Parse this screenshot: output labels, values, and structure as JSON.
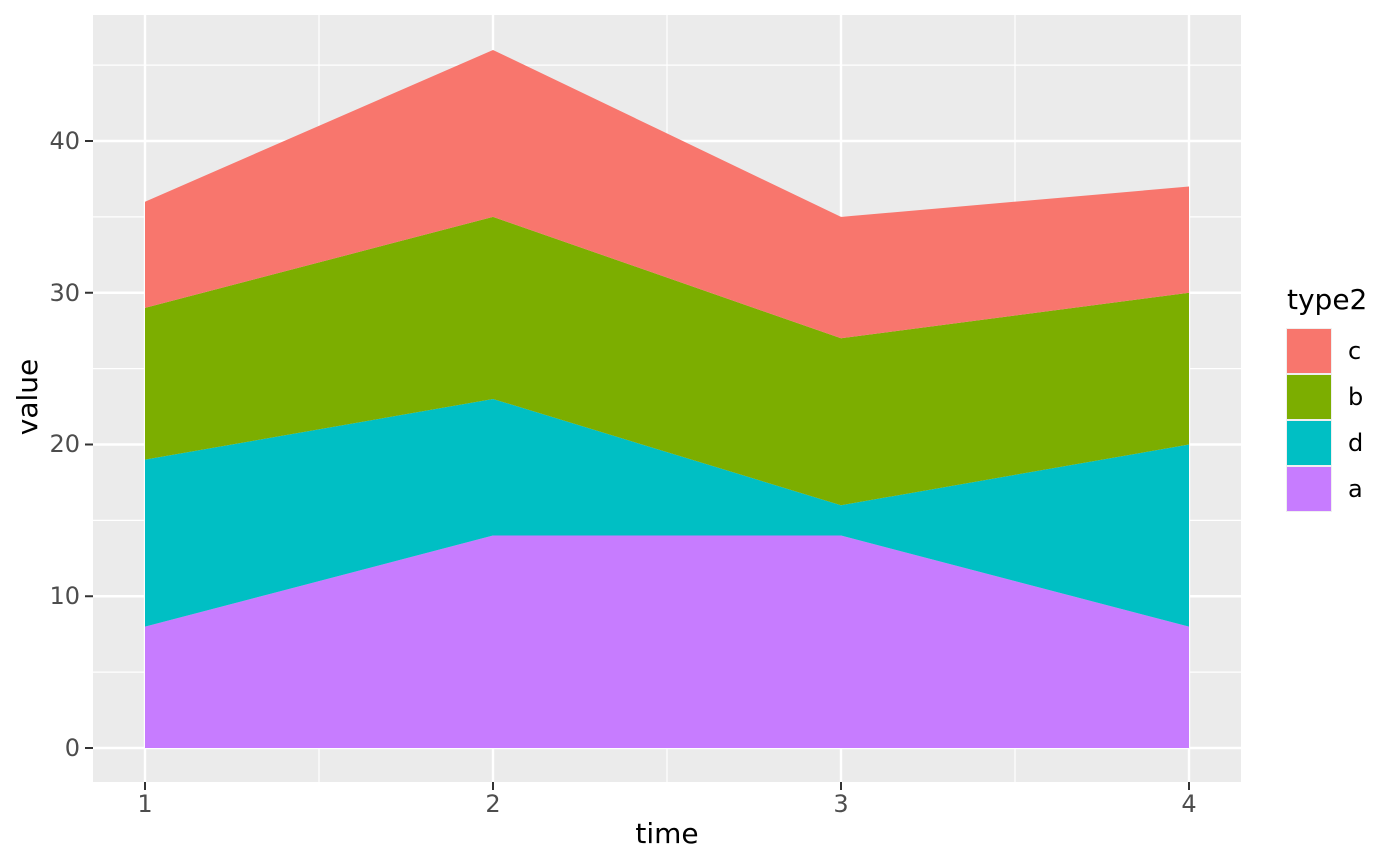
{
  "chart_data": {
    "type": "area",
    "stacked": true,
    "x": [
      1,
      2,
      3,
      4
    ],
    "series": [
      {
        "name": "a",
        "color": "#C77CFF",
        "values": [
          8,
          14,
          14,
          8
        ]
      },
      {
        "name": "d",
        "color": "#00BFC4",
        "values": [
          11,
          9,
          2,
          12
        ]
      },
      {
        "name": "b",
        "color": "#7CAE00",
        "values": [
          10,
          12,
          11,
          10
        ]
      },
      {
        "name": "c",
        "color": "#F8766D",
        "values": [
          7,
          11,
          8,
          7
        ]
      }
    ],
    "cumulative_tops": {
      "a": [
        8,
        14,
        14,
        8
      ],
      "a_plus_d": [
        19,
        23,
        16,
        20
      ],
      "a_plus_d_plus_b": [
        29,
        35,
        27,
        30
      ],
      "total": [
        36,
        46,
        35,
        37
      ]
    },
    "xlabel": "time",
    "ylabel": "value",
    "x_ticks": [
      1,
      2,
      3,
      4
    ],
    "y_ticks": [
      0,
      10,
      20,
      30,
      40
    ],
    "x_minor_ticks": [
      1.5,
      2.5,
      3.5
    ],
    "y_minor_ticks": [
      5,
      15,
      25,
      35,
      45
    ],
    "ylim": [
      0,
      46
    ],
    "grid": true,
    "panel_bg": "#EBEBEB",
    "grid_color": "#FFFFFF",
    "tick_mark_color": "#333333",
    "legend_position": "right"
  },
  "axes": {
    "x": {
      "title": "time",
      "ticks": [
        "1",
        "2",
        "3",
        "4"
      ]
    },
    "y": {
      "title": "value",
      "ticks": [
        "0",
        "10",
        "20",
        "30",
        "40"
      ]
    }
  },
  "legend": {
    "title": "type2",
    "items": [
      {
        "label": "c",
        "color": "#F8766D"
      },
      {
        "label": "b",
        "color": "#7CAE00"
      },
      {
        "label": "d",
        "color": "#00BFC4"
      },
      {
        "label": "a",
        "color": "#C77CFF"
      }
    ]
  }
}
